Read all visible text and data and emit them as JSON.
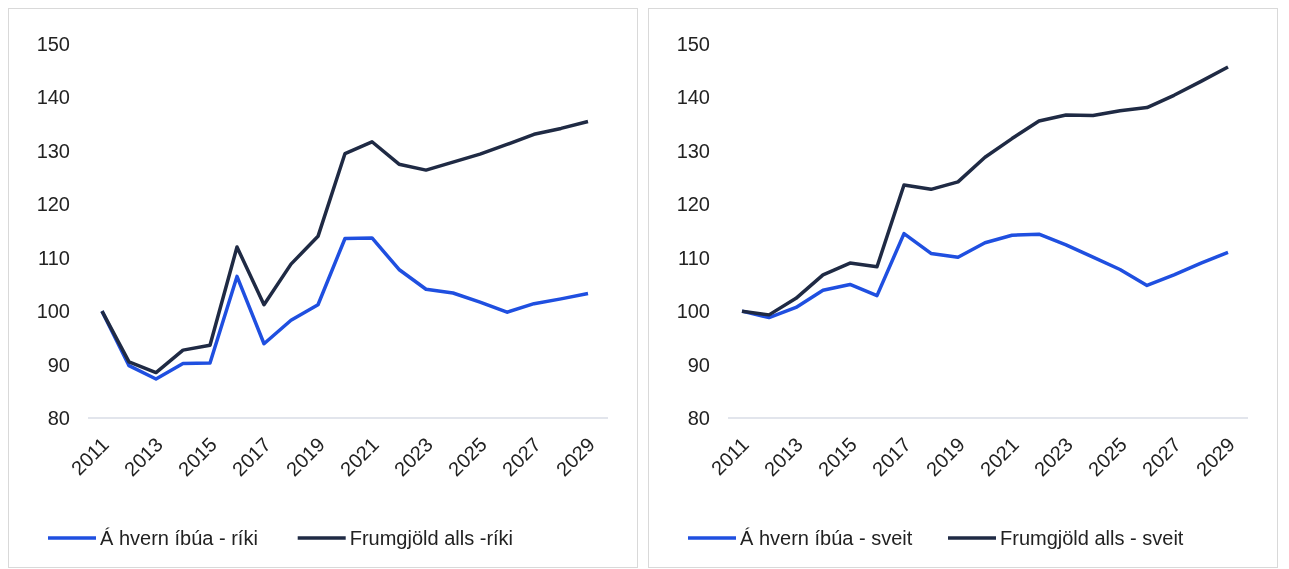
{
  "chart_data": [
    {
      "type": "line",
      "categories": [
        "2011",
        null,
        "2013",
        null,
        "2015",
        null,
        "2017",
        null,
        "2019",
        null,
        "2021",
        null,
        "2023",
        null,
        "2025",
        null,
        "2027",
        null,
        "2029"
      ],
      "ylim": [
        80,
        150
      ],
      "yticks": [
        80,
        90,
        100,
        110,
        120,
        130,
        140,
        150
      ],
      "grid": false,
      "legend": "bottom",
      "series": [
        {
          "name": "Á hvern íbúa - ríki",
          "color": "#1f4fe0",
          "values": [
            100,
            89.8,
            87.3,
            90.2,
            90.3,
            106.5,
            93.9,
            98.3,
            101.2,
            113.6,
            113.7,
            107.8,
            104.1,
            103.4,
            101.7,
            99.8,
            101.4,
            102.3,
            103.3
          ]
        },
        {
          "name": "Frumgjöld alls -ríki",
          "color": "#1f2a44",
          "values": [
            100,
            90.5,
            88.5,
            92.7,
            93.6,
            112,
            101.2,
            108.8,
            114,
            129.5,
            131.7,
            127.5,
            126.4,
            127.9,
            129.4,
            131.2,
            133.1,
            134.2,
            135.5
          ]
        }
      ]
    },
    {
      "type": "line",
      "categories": [
        "2011",
        null,
        "2013",
        null,
        "2015",
        null,
        "2017",
        null,
        "2019",
        null,
        "2021",
        null,
        "2023",
        null,
        "2025",
        null,
        "2027",
        null,
        "2029"
      ],
      "ylim": [
        80,
        150
      ],
      "yticks": [
        80,
        90,
        100,
        110,
        120,
        130,
        140,
        150
      ],
      "grid": false,
      "legend": "bottom",
      "series": [
        {
          "name": "Á hvern íbúa - sveit",
          "color": "#1f4fe0",
          "values": [
            100,
            98.8,
            100.7,
            103.9,
            105,
            102.9,
            114.5,
            110.8,
            110.1,
            112.8,
            114.2,
            114.4,
            112.4,
            110.1,
            107.8,
            104.8,
            106.8,
            109,
            111
          ]
        },
        {
          "name": "Frumgjöld alls - sveit",
          "color": "#1f2a44",
          "values": [
            100,
            99.3,
            102.4,
            106.8,
            109,
            108.3,
            123.6,
            122.8,
            124.2,
            128.8,
            132.3,
            135.6,
            136.7,
            136.6,
            137.5,
            138.1,
            140.4,
            143,
            145.7
          ]
        }
      ]
    }
  ]
}
